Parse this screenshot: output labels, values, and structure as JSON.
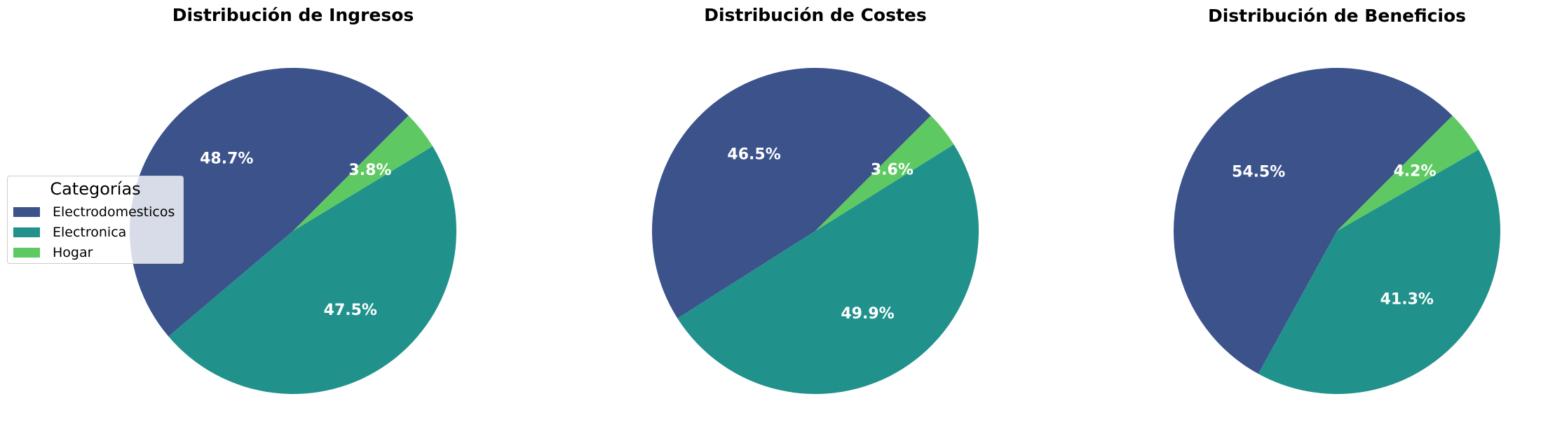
{
  "chart_data": [
    {
      "type": "pie",
      "title": "Distribución de Ingresos",
      "categories": [
        "Electrodomesticos",
        "Electronica",
        "Hogar"
      ],
      "values": [
        48.7,
        47.5,
        3.8
      ],
      "labels": [
        "48.7%",
        "47.5%",
        "3.8%"
      ],
      "colors": [
        "#3b528b",
        "#21918c",
        "#5ec962"
      ]
    },
    {
      "type": "pie",
      "title": "Distribución de Costes",
      "categories": [
        "Electrodomesticos",
        "Electronica",
        "Hogar"
      ],
      "values": [
        46.5,
        49.9,
        3.6
      ],
      "labels": [
        "46.5%",
        "49.9%",
        "3.6%"
      ],
      "colors": [
        "#3b528b",
        "#21918c",
        "#5ec962"
      ]
    },
    {
      "type": "pie",
      "title": "Distribución de Beneficios",
      "categories": [
        "Electrodomesticos",
        "Electronica",
        "Hogar"
      ],
      "values": [
        54.5,
        41.3,
        4.2
      ],
      "labels": [
        "54.5%",
        "41.3%",
        "4.2%"
      ],
      "colors": [
        "#3b528b",
        "#21918c",
        "#5ec962"
      ]
    }
  ],
  "legend": {
    "title": "Categorías",
    "placement": "left",
    "items": [
      {
        "label": "Electrodomesticos",
        "color": "#3b528b"
      },
      {
        "label": "Electronica",
        "color": "#21918c"
      },
      {
        "label": "Hogar",
        "color": "#5ec962"
      }
    ]
  }
}
